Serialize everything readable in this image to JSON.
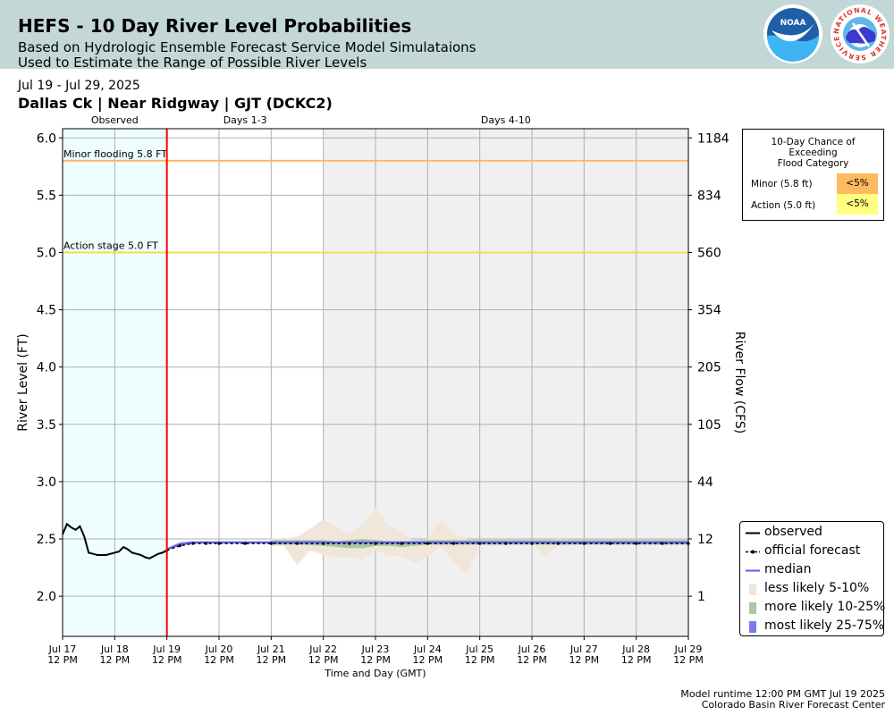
{
  "header": {
    "title": "HEFS - 10 Day River Level Probabilities",
    "subtitle_1": "Based on Hydrologic Ensemble Forecast Service Model Simulataions",
    "subtitle_2": "Used to Estimate the Range of Possible River Levels",
    "noaa_logo_text": "NOAA",
    "nws_logo_text": "NATIONAL WEATHER SERVICE"
  },
  "date_range": "Jul 19 - Jul 29, 2025",
  "station": "Dallas Ck | Near Ridgway | GJT (DCKC2)",
  "footer": {
    "runtime": "Model runtime 12:00 PM GMT Jul 19 2025",
    "center": "Colorado Basin River Forecast Center"
  },
  "probability_box": {
    "title_lines": [
      "10-Day Chance of",
      "Exceeding",
      "Flood Category"
    ],
    "rows": [
      {
        "label": "Minor (5.8 ft)",
        "value": "<5%",
        "color": "#ffb95e"
      },
      {
        "label": "Action (5.0 ft)",
        "value": "<5%",
        "color": "#ffff80"
      }
    ]
  },
  "legend": [
    {
      "label": "observed",
      "key": "observed"
    },
    {
      "label": "official forecast",
      "key": "forecast"
    },
    {
      "label": "median",
      "key": "median"
    },
    {
      "label": "less likely 5-10%",
      "key": "band_5_10",
      "color": "#f0e6da"
    },
    {
      "label": "more likely 10-25%",
      "key": "band_10_25",
      "color": "#a8c8a0"
    },
    {
      "label": "most likely 25-75%",
      "key": "band_25_75",
      "color": "#7b7bf0"
    }
  ],
  "chart_data": {
    "type": "line",
    "xlabel": "Time and Day (GMT)",
    "ylabel": "River Level (FT)",
    "ylabel_right": "River Flow (CFS)",
    "ylim": [
      1.65,
      6.08
    ],
    "xlim_days": [
      "Jul 17 12 PM",
      "Jul 29 12 PM"
    ],
    "x_ticks": [
      {
        "date": "Jul 17",
        "time": "12 PM"
      },
      {
        "date": "Jul 18",
        "time": "12 PM"
      },
      {
        "date": "Jul 19",
        "time": "12 PM"
      },
      {
        "date": "Jul 20",
        "time": "12 PM"
      },
      {
        "date": "Jul 21",
        "time": "12 PM"
      },
      {
        "date": "Jul 22",
        "time": "12 PM"
      },
      {
        "date": "Jul 23",
        "time": "12 PM"
      },
      {
        "date": "Jul 24",
        "time": "12 PM"
      },
      {
        "date": "Jul 25",
        "time": "12 PM"
      },
      {
        "date": "Jul 26",
        "time": "12 PM"
      },
      {
        "date": "Jul 27",
        "time": "12 PM"
      },
      {
        "date": "Jul 28",
        "time": "12 PM"
      },
      {
        "date": "Jul 29",
        "time": "12 PM"
      }
    ],
    "y_ticks": [
      "2.0",
      "2.5",
      "3.0",
      "3.5",
      "4.0",
      "4.5",
      "5.0",
      "5.5",
      "6.0"
    ],
    "y_ticks_right": [
      {
        "stage": 2.0,
        "label": "1"
      },
      {
        "stage": 2.5,
        "label": "12"
      },
      {
        "stage": 3.0,
        "label": "44"
      },
      {
        "stage": 3.5,
        "label": "105"
      },
      {
        "stage": 4.0,
        "label": "205"
      },
      {
        "stage": 4.5,
        "label": "354"
      },
      {
        "stage": 5.0,
        "label": "560"
      },
      {
        "stage": 5.5,
        "label": "834"
      },
      {
        "stage": 6.0,
        "label": "1184"
      }
    ],
    "period_labels": [
      "Observed",
      "Days 1-3",
      "Days 4-10"
    ],
    "thresholds": [
      {
        "label": "Minor flooding 5.8 FT",
        "value": 5.8,
        "color": "#ffb95e"
      },
      {
        "label": "Action stage 5.0 FT",
        "value": 5.0,
        "color": "#f0e050"
      }
    ],
    "observed": {
      "x": [
        "Jul 17 12 PM",
        "Jul 17 2 PM",
        "Jul 17 4 PM",
        "Jul 17 6 PM",
        "Jul 17 8 PM",
        "Jul 17 10 PM",
        "Jul 18 12 AM",
        "Jul 18 2 AM",
        "Jul 18 4 AM",
        "Jul 18 6 AM",
        "Jul 18 8 AM",
        "Jul 18 10 AM",
        "Jul 18 12 PM",
        "Jul 18 2 PM",
        "Jul 18 4 PM",
        "Jul 18 6 PM",
        "Jul 18 8 PM",
        "Jul 18 10 PM",
        "Jul 19 12 AM",
        "Jul 19 2 AM",
        "Jul 19 4 AM",
        "Jul 19 6 AM",
        "Jul 19 8 AM",
        "Jul 19 10 AM",
        "Jul 19 12 PM"
      ],
      "y": [
        2.54,
        2.63,
        2.6,
        2.58,
        2.61,
        2.52,
        2.38,
        2.37,
        2.36,
        2.36,
        2.36,
        2.37,
        2.38,
        2.39,
        2.43,
        2.41,
        2.38,
        2.37,
        2.36,
        2.34,
        2.33,
        2.35,
        2.37,
        2.38,
        2.4
      ]
    },
    "official_forecast": {
      "x": [
        "Jul 19 12 PM",
        "Jul 19 6 PM",
        "Jul 20 12 AM",
        "Jul 20 6 AM",
        "Jul 20 12 PM",
        "Jul 21 12 AM",
        "Jul 21 12 PM",
        "Jul 22 12 AM",
        "Jul 22 12 PM",
        "Jul 23 12 AM",
        "Jul 23 12 PM",
        "Jul 24 12 AM",
        "Jul 24 12 PM",
        "Jul 25 12 AM",
        "Jul 25 12 PM",
        "Jul 26 12 AM",
        "Jul 26 12 PM",
        "Jul 27 12 AM",
        "Jul 27 12 PM",
        "Jul 28 12 AM",
        "Jul 28 12 PM",
        "Jul 29 12 AM",
        "Jul 29 12 PM"
      ],
      "y": [
        2.4,
        2.44,
        2.46,
        2.46,
        2.46,
        2.46,
        2.46,
        2.46,
        2.46,
        2.46,
        2.46,
        2.46,
        2.46,
        2.46,
        2.46,
        2.46,
        2.46,
        2.46,
        2.46,
        2.46,
        2.46,
        2.46,
        2.46
      ]
    },
    "median": {
      "x": [
        "Jul 19 12 PM",
        "Jul 19 6 PM",
        "Jul 20 12 AM",
        "Jul 29 12 PM"
      ],
      "y": [
        2.41,
        2.45,
        2.47,
        2.47
      ]
    },
    "band_25_75": {
      "x": [
        "Jul 19 12 PM",
        "Jul 19 6 PM",
        "Jul 20 12 AM",
        "Jul 29 12 PM"
      ],
      "upper": [
        2.42,
        2.47,
        2.48,
        2.48
      ],
      "lower": [
        2.4,
        2.44,
        2.46,
        2.46
      ]
    },
    "band_10_25": {
      "x": [
        "Jul 21 12 PM",
        "Jul 22 12 AM",
        "Jul 22 12 PM",
        "Jul 22 6 PM",
        "Jul 23 12 AM",
        "Jul 23 6 AM",
        "Jul 23 12 PM",
        "Jul 23 6 PM",
        "Jul 24 12 AM",
        "Jul 24 12 PM",
        "Jul 25 12 PM",
        "Jul 26 12 PM",
        "Jul 27 12 PM",
        "Jul 29 12 PM"
      ],
      "upper": [
        2.49,
        2.49,
        2.49,
        2.48,
        2.49,
        2.5,
        2.49,
        2.48,
        2.48,
        2.49,
        2.49,
        2.49,
        2.49,
        2.49
      ],
      "lower": [
        2.45,
        2.45,
        2.44,
        2.43,
        2.42,
        2.42,
        2.44,
        2.44,
        2.43,
        2.45,
        2.45,
        2.45,
        2.45,
        2.45
      ]
    },
    "band_5_10": {
      "x": [
        "Jul 21 12 PM",
        "Jul 21 6 PM",
        "Jul 22 12 AM",
        "Jul 22 6 AM",
        "Jul 22 12 PM",
        "Jul 22 6 PM",
        "Jul 23 12 AM",
        "Jul 23 6 AM",
        "Jul 23 12 PM",
        "Jul 23 6 PM",
        "Jul 24 12 AM",
        "Jul 24 6 AM",
        "Jul 24 12 PM",
        "Jul 24 6 PM",
        "Jul 25 12 AM",
        "Jul 25 6 AM",
        "Jul 25 12 PM",
        "Jul 26 12 PM",
        "Jul 26 6 PM",
        "Jul 27 12 AM",
        "Jul 27 12 PM",
        "Jul 29 12 PM"
      ],
      "upper": [
        2.51,
        2.5,
        2.52,
        2.59,
        2.67,
        2.6,
        2.55,
        2.62,
        2.77,
        2.62,
        2.56,
        2.48,
        2.5,
        2.67,
        2.55,
        2.5,
        2.49,
        2.49,
        2.49,
        2.5,
        2.49,
        2.49
      ],
      "lower": [
        2.44,
        2.44,
        2.27,
        2.4,
        2.36,
        2.34,
        2.34,
        2.32,
        2.4,
        2.35,
        2.35,
        2.29,
        2.34,
        2.44,
        2.3,
        2.19,
        2.44,
        2.45,
        2.35,
        2.44,
        2.45,
        2.45
      ]
    }
  }
}
